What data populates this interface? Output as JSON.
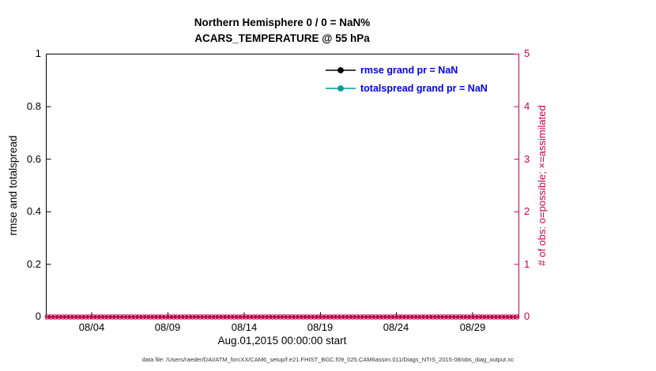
{
  "chart_data": {
    "type": "line",
    "title": "Northern Hemisphere 0 / 0 = NaN%",
    "subtitle": "ACARS_TEMPERATURE @ 55 hPa",
    "xlabel": "Aug.01,2015 00:00:00 start",
    "ylabel_left": "rmse and totalspread",
    "ylabel_right": "# of obs: o=possible; ×=assimilated",
    "ylim_left": [
      0,
      1
    ],
    "ylim_right": [
      0,
      5
    ],
    "yticks_left": [
      "0",
      "0.2",
      "0.4",
      "0.6",
      "0.8",
      "1"
    ],
    "yticks_right": [
      "0",
      "1",
      "2",
      "3",
      "4",
      "5"
    ],
    "xticklabels": [
      "08/04",
      "08/09",
      "08/14",
      "08/19",
      "08/24",
      "08/29"
    ],
    "x_span_days": 31,
    "xtick_days": [
      3,
      8,
      13,
      18,
      23,
      28
    ],
    "grid": false,
    "legend_position": "upper-right-inside",
    "series": [
      {
        "name": "rmse grand pr = NaN",
        "color": "#000000",
        "values": []
      },
      {
        "name": "totalspread grand pr = NaN",
        "color": "#009b95",
        "values": []
      }
    ],
    "obs_markers": {
      "description": "possible (o) and assimilated (x) observation counts, all zero along right axis value 0",
      "value": 0,
      "count": 124,
      "color": "#c8004b"
    },
    "colors": {
      "right_axis": "#c8004b",
      "legend_text": "#0000ee",
      "axis_frame": "#000000"
    }
  },
  "footer": {
    "data_file": "data file: /Users/raeder/DAI/ATM_forcXX/CAM6_setup/f.e21.FHIST_BGC.f09_025.CAM6assim.011/Diags_NTrS_2015-08/obs_diag_output.nc"
  }
}
